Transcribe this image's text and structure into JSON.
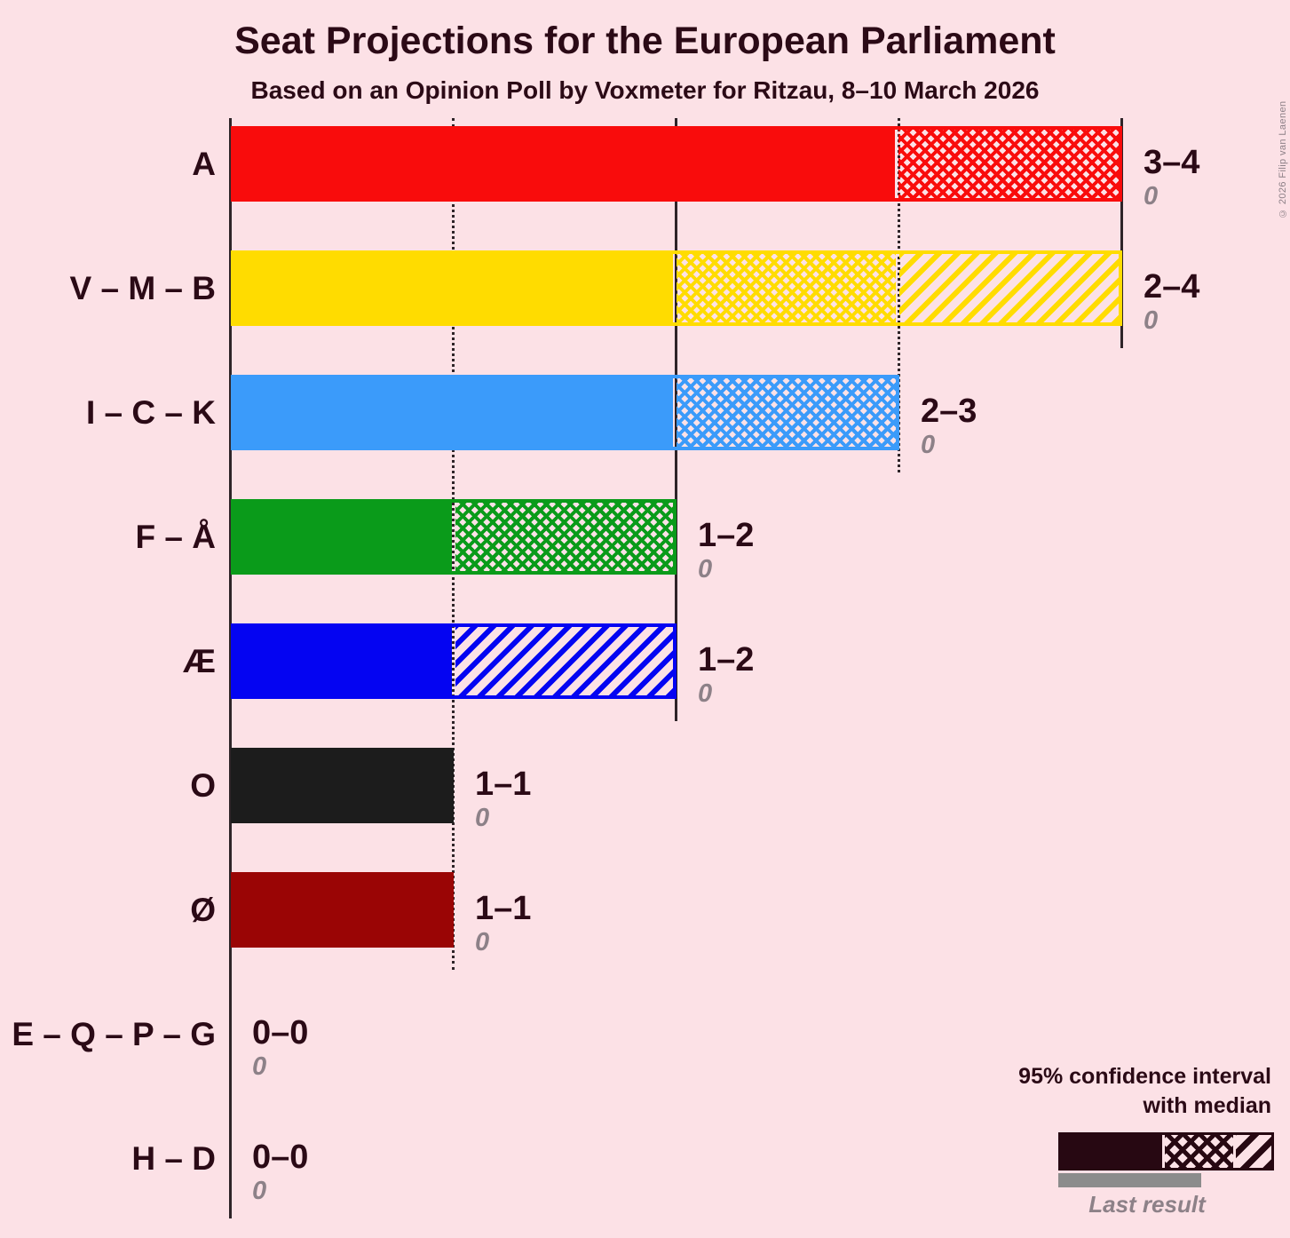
{
  "title": "Seat Projections for the European Parliament",
  "subtitle": "Based on an Opinion Poll by Voxmeter for Ritzau, 8–10 March 2026",
  "copyright": "© 2026 Filip van Laenen",
  "legend": {
    "title_line1": "95% confidence interval",
    "title_line2": "with median",
    "last_result": "Last result"
  },
  "colors": {
    "background": "#fce1e6",
    "ink": "#2b0a16",
    "grid": "#2e2428",
    "gray": "#8c8c8c",
    "muted": "#8d8188",
    "legend_dark": "#270812"
  },
  "chart_data": {
    "type": "bar",
    "orientation": "horizontal",
    "x_axis": {
      "min": 0,
      "max": 4,
      "unit": "seats",
      "solid_gridlines": [
        0,
        2,
        4
      ],
      "dotted_gridlines": [
        1,
        3
      ],
      "tick_labels_visible": false
    },
    "parties": [
      {
        "label": "A",
        "color": "#f90c0c",
        "ci_label": "3–4",
        "low": 3,
        "median": 4,
        "high": 4,
        "last_result": "0"
      },
      {
        "label": "V – M – B",
        "color": "#ffdc00",
        "ci_label": "2–4",
        "low": 2,
        "median": 3,
        "high": 4,
        "last_result": "0"
      },
      {
        "label": "I – C – K",
        "color": "#3b9bfa",
        "ci_label": "2–3",
        "low": 2,
        "median": 3,
        "high": 3,
        "last_result": "0"
      },
      {
        "label": "F – Å",
        "color": "#0a9b1a",
        "ci_label": "1–2",
        "low": 1,
        "median": 2,
        "high": 2,
        "last_result": "0"
      },
      {
        "label": "Æ",
        "color": "#0404f2",
        "ci_label": "1–2",
        "low": 1,
        "median": 1,
        "high": 2,
        "last_result": "0"
      },
      {
        "label": "O",
        "color": "#1c1c1c",
        "ci_label": "1–1",
        "low": 1,
        "median": 1,
        "high": 1,
        "last_result": "0"
      },
      {
        "label": "Ø",
        "color": "#9a0505",
        "ci_label": "1–1",
        "low": 1,
        "median": 1,
        "high": 1,
        "last_result": "0"
      },
      {
        "label": "E – Q – P – G",
        "color": null,
        "ci_label": "0–0",
        "low": 0,
        "median": 0,
        "high": 0,
        "last_result": "0"
      },
      {
        "label": "H – D",
        "color": null,
        "ci_label": "0–0",
        "low": 0,
        "median": 0,
        "high": 0,
        "last_result": "0"
      }
    ]
  }
}
